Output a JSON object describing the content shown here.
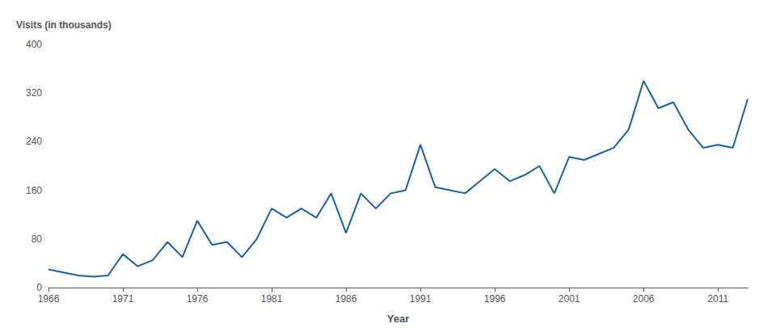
{
  "chart_data": {
    "type": "line",
    "x": [
      1966,
      1967,
      1968,
      1969,
      1970,
      1971,
      1972,
      1973,
      1974,
      1975,
      1976,
      1977,
      1978,
      1979,
      1980,
      1981,
      1982,
      1983,
      1984,
      1985,
      1986,
      1987,
      1988,
      1989,
      1990,
      1991,
      1992,
      1993,
      1994,
      1995,
      1996,
      1997,
      1998,
      1999,
      2000,
      2001,
      2002,
      2003,
      2004,
      2005,
      2006,
      2007,
      2008,
      2009,
      2010,
      2011,
      2012,
      2013
    ],
    "values": [
      30,
      25,
      20,
      18,
      20,
      55,
      35,
      45,
      75,
      50,
      110,
      70,
      75,
      50,
      80,
      130,
      115,
      130,
      115,
      155,
      90,
      155,
      130,
      155,
      160,
      235,
      165,
      160,
      155,
      175,
      195,
      175,
      185,
      200,
      155,
      215,
      210,
      220,
      230,
      260,
      340,
      295,
      305,
      260,
      230,
      235,
      230,
      310
    ],
    "color": "#1a5fa8",
    "xlabel": "Year",
    "ylabel": "Visits (in thousands)",
    "xlim": [
      1966,
      2013
    ],
    "xticks": [
      1966,
      1971,
      1976,
      1981,
      1986,
      1991,
      1996,
      2001,
      2006,
      2011
    ],
    "ylim": [
      0,
      400
    ],
    "yticks": [
      0,
      80,
      160,
      240,
      320,
      400
    ],
    "grid": false
  }
}
